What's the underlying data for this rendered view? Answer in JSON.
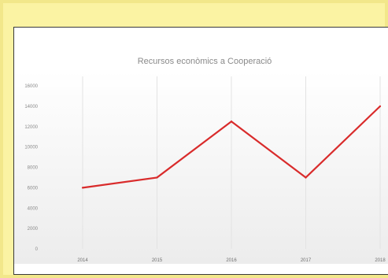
{
  "chart_data": {
    "type": "line",
    "title": "Recursos econòmics a Cooperació",
    "xlabel": "",
    "ylabel": "",
    "categories": [
      "2014",
      "2015",
      "2016",
      "2017",
      "2018"
    ],
    "series": [
      {
        "values": [
          6000,
          7000,
          12500,
          7000,
          14000
        ]
      }
    ],
    "ylim": [
      0,
      16000
    ],
    "yticks": [
      0,
      2000,
      4000,
      6000,
      8000,
      10000,
      12000,
      14000,
      16000
    ],
    "ytick_labels": [
      "0",
      "2000",
      "4000",
      "6000",
      "8000",
      "10000",
      "12000",
      "14000",
      "16000"
    ],
    "grid": "vertical",
    "legend": "none",
    "line_color": "#d92b2b"
  }
}
